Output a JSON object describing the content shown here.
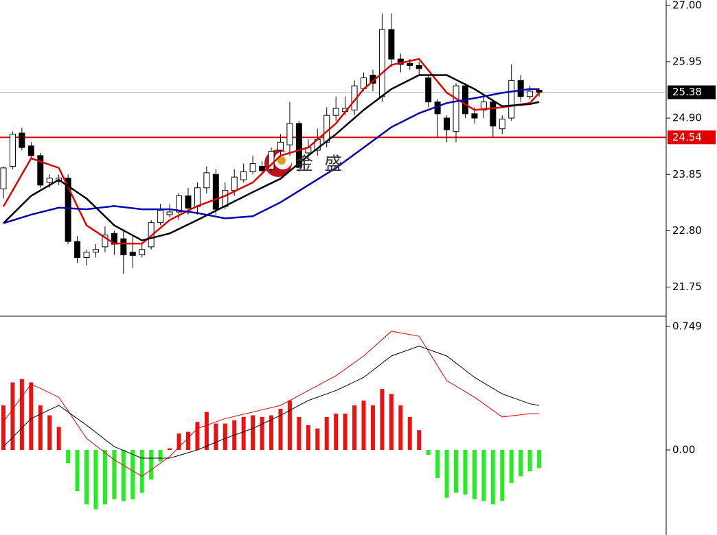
{
  "chart_data": [
    {
      "type": "candlestick",
      "watermark": "金 盛",
      "up_color": "#ffffff",
      "down_color": "#000000",
      "open": [
        23.58,
        24.0,
        24.62,
        24.38,
        24.2,
        23.7,
        23.72,
        23.78,
        22.6,
        22.3,
        22.4,
        22.5,
        22.75,
        22.65,
        22.4,
        22.35,
        22.5,
        22.95,
        23.1,
        23.15,
        23.45,
        23.25,
        23.6,
        23.85,
        23.25,
        23.55,
        23.75,
        23.9,
        24.0,
        23.95,
        24.3,
        24.4,
        24.8,
        24.25,
        24.3,
        24.45,
        24.95,
        25.02,
        25.05,
        25.45,
        25.7,
        25.3,
        26.55,
        26.0,
        25.92,
        25.88,
        25.65,
        25.2,
        24.9,
        24.65,
        25.5,
        24.98,
        25.05,
        25.2,
        24.7,
        24.9,
        25.6,
        25.3,
        25.42
      ],
      "high": [
        24.0,
        24.65,
        24.72,
        24.45,
        24.25,
        23.85,
        23.85,
        23.85,
        22.7,
        22.45,
        22.55,
        22.88,
        22.8,
        22.8,
        22.7,
        22.55,
        23.0,
        23.3,
        23.3,
        23.5,
        23.6,
        23.7,
        24.0,
        23.95,
        23.7,
        23.95,
        24.05,
        24.2,
        24.1,
        24.35,
        24.6,
        25.2,
        24.85,
        24.5,
        24.7,
        25.1,
        25.3,
        25.3,
        25.6,
        25.75,
        25.8,
        26.85,
        26.85,
        26.1,
        26.0,
        25.95,
        25.7,
        25.25,
        24.95,
        25.55,
        25.55,
        25.1,
        25.3,
        25.25,
        24.95,
        25.9,
        25.7,
        25.5,
        25.45
      ],
      "low": [
        23.4,
        23.95,
        24.3,
        24.15,
        23.6,
        23.6,
        23.65,
        22.55,
        22.2,
        22.15,
        22.3,
        22.4,
        22.35,
        22.0,
        22.1,
        22.3,
        22.45,
        22.9,
        23.05,
        23.0,
        23.1,
        23.1,
        23.5,
        23.1,
        23.2,
        23.45,
        23.7,
        23.85,
        23.85,
        23.9,
        24.2,
        24.2,
        23.9,
        24.1,
        24.2,
        24.35,
        24.85,
        24.95,
        24.95,
        25.4,
        25.4,
        25.2,
        25.85,
        25.75,
        25.8,
        25.7,
        25.1,
        24.55,
        24.45,
        24.45,
        24.9,
        24.8,
        24.9,
        24.55,
        24.6,
        24.85,
        25.2,
        25.25,
        25.3
      ],
      "close": [
        23.97,
        24.6,
        24.35,
        24.2,
        23.65,
        23.78,
        23.78,
        22.6,
        22.3,
        22.4,
        22.45,
        22.72,
        22.55,
        22.35,
        22.34,
        22.45,
        22.95,
        23.18,
        23.15,
        23.45,
        23.22,
        23.6,
        23.88,
        23.2,
        23.55,
        23.8,
        23.9,
        24.05,
        23.92,
        24.28,
        24.45,
        24.8,
        23.98,
        24.35,
        24.5,
        24.95,
        25.08,
        25.08,
        25.5,
        25.65,
        25.55,
        26.55,
        26.0,
        25.9,
        25.88,
        25.82,
        25.2,
        24.98,
        24.68,
        25.5,
        24.98,
        24.9,
        25.2,
        24.75,
        24.88,
        25.6,
        25.3,
        25.4,
        25.38
      ],
      "series": [
        {
          "color": "#e00000",
          "x": [
            0,
            3,
            6,
            9,
            12,
            15,
            18,
            21,
            24,
            27,
            30,
            33,
            36,
            39,
            42,
            45,
            48,
            51,
            54,
            57,
            58
          ],
          "values": [
            23.25,
            24.15,
            23.97,
            22.9,
            22.56,
            22.56,
            23.0,
            23.26,
            23.45,
            23.7,
            24.2,
            24.35,
            24.8,
            25.44,
            25.89,
            26.0,
            25.37,
            25.05,
            25.1,
            25.18,
            25.37
          ]
        },
        {
          "color": "#000000",
          "x": [
            0,
            3,
            6,
            9,
            12,
            15,
            18,
            21,
            24,
            27,
            30,
            33,
            36,
            39,
            42,
            45,
            48,
            51,
            54,
            57,
            58
          ],
          "values": [
            22.94,
            23.45,
            23.75,
            23.4,
            22.9,
            22.62,
            22.75,
            23.0,
            23.26,
            23.52,
            23.77,
            24.2,
            24.6,
            25.05,
            25.44,
            25.7,
            25.7,
            25.44,
            25.12,
            25.16,
            25.2
          ]
        },
        {
          "color": "#0000b0",
          "x": [
            0,
            3,
            6,
            9,
            12,
            15,
            18,
            21,
            24,
            27,
            30,
            33,
            36,
            39,
            42,
            45,
            48,
            51,
            54,
            57,
            58
          ],
          "values": [
            22.94,
            23.1,
            23.23,
            23.2,
            23.26,
            23.2,
            23.2,
            23.13,
            23.03,
            23.07,
            23.33,
            23.65,
            23.97,
            24.35,
            24.73,
            24.99,
            25.18,
            25.27,
            25.37,
            25.44,
            25.44
          ]
        }
      ],
      "last_price": 25.38,
      "level": 24.54,
      "level_color": "#e00000",
      "xlim": [
        -0.37,
        71.75
      ],
      "ylim": [
        21.22,
        27.1
      ],
      "yticks": [
        {
          "value": 27,
          "label": "27.00"
        },
        25.95,
        {
          "value": 24.9,
          "label": "24.90"
        },
        23.85,
        {
          "value": 22.8,
          "label": "22.80"
        },
        21.75
      ]
    },
    {
      "type": "macd",
      "up_color": "#ee1111",
      "down_color": "#22ee22",
      "values": [
        0.27,
        0.41,
        0.43,
        0.41,
        0.27,
        0.21,
        0.14,
        -0.08,
        -0.25,
        -0.33,
        -0.36,
        -0.33,
        -0.3,
        -0.31,
        -0.3,
        -0.26,
        -0.18,
        -0.07,
        0.01,
        0.1,
        0.11,
        0.17,
        0.23,
        0.16,
        0.16,
        0.18,
        0.2,
        0.21,
        0.2,
        0.21,
        0.25,
        0.3,
        0.2,
        0.15,
        0.13,
        0.2,
        0.22,
        0.22,
        0.27,
        0.3,
        0.27,
        0.37,
        0.34,
        0.27,
        0.2,
        0.12,
        -0.03,
        -0.17,
        -0.29,
        -0.26,
        -0.27,
        -0.3,
        -0.31,
        -0.33,
        -0.31,
        -0.2,
        -0.16,
        -0.13,
        -0.11
      ],
      "series": [
        {
          "color": "#e00000",
          "x": [
            0,
            3,
            6,
            9,
            12,
            15,
            18,
            21,
            24,
            27,
            30,
            33,
            36,
            39,
            42,
            45,
            48,
            51,
            54,
            57,
            58
          ],
          "values": [
            0.17,
            0.4,
            0.32,
            0.07,
            -0.06,
            -0.16,
            -0.04,
            0.13,
            0.19,
            0.23,
            0.27,
            0.36,
            0.45,
            0.57,
            0.72,
            0.69,
            0.42,
            0.32,
            0.2,
            0.22,
            0.22
          ]
        },
        {
          "color": "#000000",
          "x": [
            0,
            3,
            6,
            9,
            12,
            15,
            18,
            21,
            24,
            27,
            30,
            33,
            36,
            39,
            42,
            45,
            48,
            51,
            54,
            57,
            58
          ],
          "values": [
            0.02,
            0.19,
            0.27,
            0.15,
            0.02,
            -0.05,
            -0.05,
            0.0,
            0.07,
            0.13,
            0.21,
            0.3,
            0.36,
            0.44,
            0.57,
            0.63,
            0.57,
            0.44,
            0.34,
            0.28,
            0.27
          ]
        }
      ],
      "xlim": [
        -0.37,
        71.75
      ],
      "ylim": [
        -0.516,
        0.803
      ],
      "yticks": [
        0.749,
        {
          "value": 0,
          "label": "0.00"
        }
      ]
    }
  ]
}
